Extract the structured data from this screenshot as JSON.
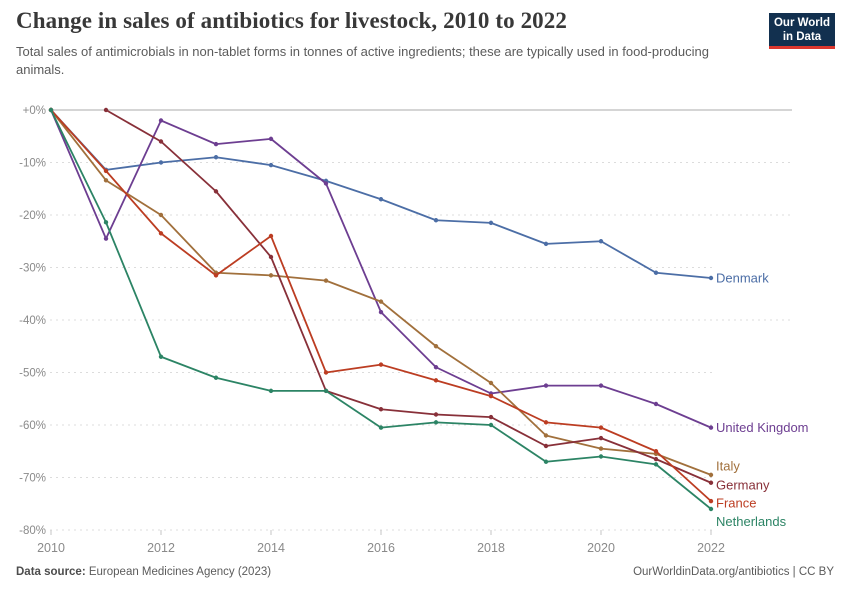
{
  "header": {
    "title": "Change in sales of antibiotics for livestock, 2010 to 2022",
    "subtitle": "Total sales of antimicrobials in non-tablet forms in tonnes of active ingredients; these are typically used in food-producing animals.",
    "logo_line1": "Our World",
    "logo_line2": "in Data"
  },
  "chart_data": {
    "type": "line",
    "x": [
      2010,
      2011,
      2012,
      2013,
      2014,
      2015,
      2016,
      2017,
      2018,
      2019,
      2020,
      2021,
      2022
    ],
    "x_tick_labels": [
      "2010",
      "2012",
      "2014",
      "2016",
      "2018",
      "2020",
      "2022"
    ],
    "y_axis": {
      "ylim": [
        -80,
        0
      ],
      "ticks": [
        0,
        -10,
        -20,
        -30,
        -40,
        -50,
        -60,
        -70,
        -80
      ],
      "tick_labels": [
        "+0%",
        "-10%",
        "-20%",
        "-30%",
        "-40%",
        "-50%",
        "-60%",
        "-70%",
        "-80%"
      ]
    },
    "grid": "horizontal-dashed",
    "legend_position": "right-end-labels",
    "unit": "% change relative to 2010",
    "series": [
      {
        "name": "Denmark",
        "color": "#4C6EA6",
        "label_dy": 0,
        "values": [
          0,
          -11.4,
          -10,
          -9,
          -10.5,
          -13.5,
          -17,
          -21,
          -21.5,
          -25.5,
          -25,
          -31,
          -32
        ]
      },
      {
        "name": "United Kingdom",
        "color": "#6D3E91",
        "label_dy": 0,
        "values": [
          0,
          -24.5,
          -2,
          -6.5,
          -5.5,
          -14,
          -38.5,
          -49,
          -54,
          -52.5,
          -52.5,
          -56,
          -60.5
        ]
      },
      {
        "name": "Italy",
        "color": "#A1703C",
        "label_dy": -9,
        "values": [
          0,
          -13.4,
          -20,
          -31,
          -31.5,
          -32.5,
          -36.5,
          -45,
          -52,
          -62,
          -64.5,
          -65.5,
          -69.5
        ]
      },
      {
        "name": "Germany",
        "color": "#883039",
        "label_dy": 2,
        "values": [
          null,
          0,
          -6,
          -15.5,
          -28,
          -53.5,
          -57,
          -58,
          -58.5,
          -64,
          -62.5,
          -66.5,
          -71
        ]
      },
      {
        "name": "France",
        "color": "#BC3D22",
        "label_dy": 2,
        "values": [
          0,
          -11.6,
          -23.5,
          -31.5,
          -24,
          -50,
          -48.5,
          -51.5,
          -54.5,
          -59.5,
          -60.5,
          -65,
          -74.5
        ]
      },
      {
        "name": "Netherlands",
        "color": "#2C8465",
        "label_dy": 12.5,
        "values": [
          0,
          -21.4,
          -47,
          -51,
          -53.5,
          -53.5,
          -60.5,
          -59.5,
          -60,
          -67,
          -66,
          -67.5,
          -76
        ]
      }
    ]
  },
  "footer": {
    "source_label": "Data source:",
    "source_value": " European Medicines Agency (2023)",
    "credit": "OurWorldinData.org/antibiotics | CC BY"
  }
}
